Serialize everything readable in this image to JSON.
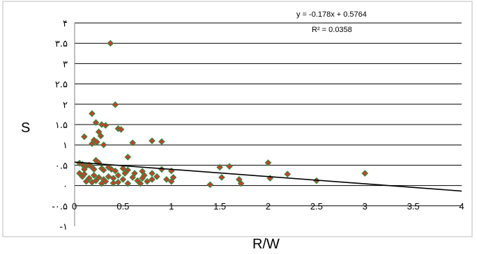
{
  "chart_data": {
    "type": "scatter",
    "xlabel": "R/W",
    "ylabel": "S",
    "xlim": [
      0,
      4
    ],
    "ylim": [
      -1,
      4
    ],
    "x_ticks": [
      "0",
      "0.5",
      "1",
      "1.5",
      "2",
      "2.5",
      "3",
      "3.5",
      "4"
    ],
    "y_ticks": [
      {
        "value": 4,
        "label": "۴"
      },
      {
        "value": 3.5,
        "label": "۳.۵"
      },
      {
        "value": 3,
        "label": "۳"
      },
      {
        "value": 2.5,
        "label": "۲.۵"
      },
      {
        "value": 2,
        "label": "۲"
      },
      {
        "value": 1.5,
        "label": "۱.۵"
      },
      {
        "value": 1,
        "label": "۱"
      },
      {
        "value": 0.5,
        "label": "۰.۵"
      },
      {
        "value": 0,
        "label": "۰"
      },
      {
        "value": -0.5,
        "label": "-۰.۵"
      },
      {
        "value": -1,
        "label": "-۱"
      }
    ],
    "grid": "horizontal",
    "legend": "none",
    "equation": "y = -0.178x + 0.5764",
    "r_squared": "R² = 0.0358",
    "trendline": {
      "slope": -0.178,
      "intercept": 0.5764
    },
    "marker_colors": {
      "fill": "#d23a2a",
      "edge": "#2f8a3c",
      "trend": "#000000"
    },
    "points": [
      [
        0.37,
        3.5
      ],
      [
        0.42,
        1.99
      ],
      [
        0.18,
        1.77
      ],
      [
        0.22,
        1.55
      ],
      [
        0.28,
        1.5
      ],
      [
        0.32,
        1.48
      ],
      [
        0.45,
        1.4
      ],
      [
        0.48,
        1.38
      ],
      [
        0.25,
        1.32
      ],
      [
        0.27,
        1.22
      ],
      [
        0.1,
        1.2
      ],
      [
        0.2,
        1.12
      ],
      [
        0.23,
        1.07
      ],
      [
        0.3,
        1.0
      ],
      [
        0.18,
        1.03
      ],
      [
        0.6,
        1.05
      ],
      [
        0.8,
        1.1
      ],
      [
        0.9,
        1.08
      ],
      [
        0.55,
        0.7
      ],
      [
        0.22,
        0.62
      ],
      [
        0.25,
        0.56
      ],
      [
        0.05,
        0.55
      ],
      [
        0.08,
        0.52
      ],
      [
        0.12,
        0.48
      ],
      [
        0.15,
        0.5
      ],
      [
        0.18,
        0.45
      ],
      [
        0.2,
        0.4
      ],
      [
        0.28,
        0.42
      ],
      [
        0.3,
        0.38
      ],
      [
        0.35,
        0.45
      ],
      [
        0.38,
        0.4
      ],
      [
        0.42,
        0.36
      ],
      [
        0.5,
        0.42
      ],
      [
        0.55,
        0.38
      ],
      [
        0.62,
        0.3
      ],
      [
        0.7,
        0.35
      ],
      [
        0.72,
        0.25
      ],
      [
        0.8,
        0.3
      ],
      [
        0.9,
        0.4
      ],
      [
        1.0,
        0.36
      ],
      [
        0.05,
        0.3
      ],
      [
        0.08,
        0.22
      ],
      [
        0.1,
        0.28
      ],
      [
        0.15,
        0.18
      ],
      [
        0.2,
        0.25
      ],
      [
        0.25,
        0.2
      ],
      [
        0.3,
        0.15
      ],
      [
        0.35,
        0.22
      ],
      [
        0.4,
        0.18
      ],
      [
        0.45,
        0.25
      ],
      [
        0.5,
        0.15
      ],
      [
        0.52,
        0.3
      ],
      [
        0.6,
        0.2
      ],
      [
        0.65,
        0.12
      ],
      [
        0.7,
        0.18
      ],
      [
        0.75,
        0.1
      ],
      [
        0.8,
        0.15
      ],
      [
        0.85,
        0.22
      ],
      [
        0.95,
        0.15
      ],
      [
        1.0,
        0.1
      ],
      [
        0.12,
        0.1
      ],
      [
        0.18,
        0.08
      ],
      [
        0.22,
        0.12
      ],
      [
        0.28,
        0.05
      ],
      [
        0.32,
        0.1
      ],
      [
        0.4,
        0.06
      ],
      [
        0.45,
        0.08
      ],
      [
        0.55,
        0.05
      ],
      [
        0.68,
        0.05
      ],
      [
        0.1,
        0.4
      ],
      [
        1.02,
        0.2
      ],
      [
        1.4,
        0.02
      ],
      [
        1.5,
        0.45
      ],
      [
        1.52,
        0.2
      ],
      [
        1.6,
        0.47
      ],
      [
        1.7,
        0.15
      ],
      [
        1.72,
        0.05
      ],
      [
        2.0,
        0.56
      ],
      [
        2.02,
        0.18
      ],
      [
        2.2,
        0.28
      ],
      [
        2.5,
        0.12
      ],
      [
        3.0,
        0.3
      ]
    ]
  }
}
